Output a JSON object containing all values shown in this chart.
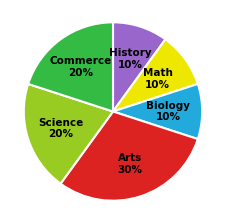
{
  "labels": [
    "History",
    "Math",
    "Biology",
    "Arts",
    "Science",
    "Commerce"
  ],
  "sizes": [
    10,
    10,
    10,
    30,
    20,
    20
  ],
  "colors": [
    "#9966CC",
    "#EEE800",
    "#22AADD",
    "#DD2222",
    "#99CC22",
    "#33BB44"
  ],
  "startangle": 90,
  "text_color": "#000000",
  "label_fontsize": 7.5,
  "label_fontweight": "bold",
  "labeldistance": 0.62,
  "background_color": "#ffffff",
  "edge_color": "#ffffff",
  "edge_linewidth": 1.5
}
